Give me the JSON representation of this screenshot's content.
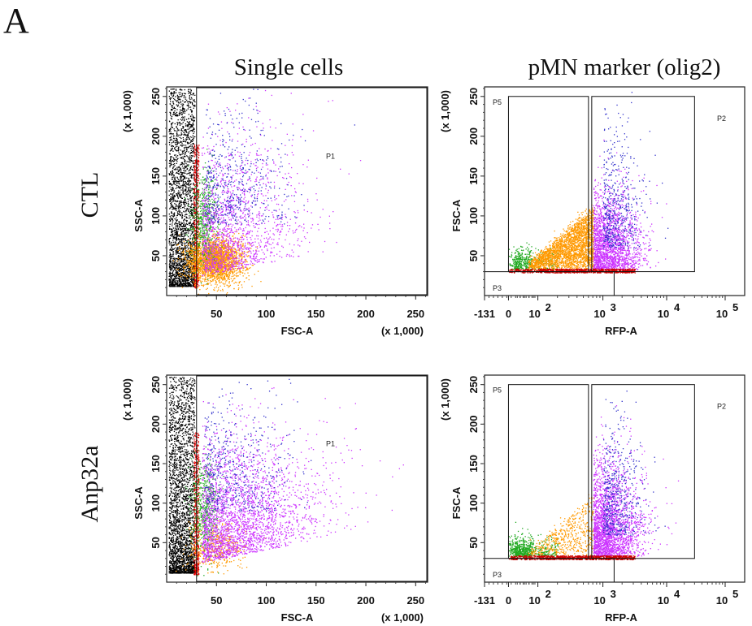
{
  "figure": {
    "panel_letter": "A",
    "column_titles": [
      "Single cells",
      "pMN marker (olig2)"
    ],
    "row_labels": [
      "CTL",
      "Anp32a"
    ]
  },
  "chart_data": [
    {
      "type": "scatter",
      "sample": "CTL",
      "plot": "Single cells",
      "xlabel": "FSC-A",
      "ylabel": "SSC-A",
      "x_unit_note": "(x 1,000)",
      "y_unit_note": "(x 1,000)",
      "xlim": [
        0,
        262
      ],
      "ylim": [
        0,
        262
      ],
      "x_ticks": [
        "50",
        "100",
        "150",
        "200",
        "250"
      ],
      "y_ticks": [
        "50",
        "100",
        "150",
        "200",
        "250"
      ],
      "gates": [
        {
          "name": "P1",
          "x_min": 30,
          "x_max": 262,
          "y_min": 0,
          "y_max": 262
        }
      ],
      "population_colors": {
        "excluded": "#000000",
        "doublet_edge": "#e00000",
        "olig2_negative": "#ff9900",
        "olig2_low": "#22aa22",
        "olig2_positive": "#cc33ff",
        "high_ssc": "#3333cc"
      }
    },
    {
      "type": "scatter",
      "sample": "CTL",
      "plot": "pMN marker (olig2)",
      "xlabel": "RFP-A",
      "ylabel": "FSC-A",
      "y_unit_note": "(x 1,000)",
      "x_scale": "biexponential",
      "ylim": [
        0,
        262
      ],
      "x_ticks": [
        "-131",
        "0",
        "10^2",
        "10^3",
        "10^4",
        "10^5"
      ],
      "y_ticks": [
        "50",
        "100",
        "150",
        "200",
        "250"
      ],
      "gates": [
        {
          "name": "P5",
          "x_min": 0,
          "x_max": 600,
          "y_min": 30,
          "y_max": 250
        },
        {
          "name": "P2",
          "x_min": 600,
          "x_max": 30000,
          "y_min": 30,
          "y_max": 250
        },
        {
          "name": "P3",
          "x_min": -131,
          "x_max": 1500,
          "y_min": 0,
          "y_max": 30
        }
      ],
      "population_colors": {
        "P5": "#22aa22",
        "mid": "#ff9900",
        "P2": "#cc33ff",
        "P2_high": "#3333cc",
        "P3": "#cc0000"
      }
    },
    {
      "type": "scatter",
      "sample": "Anp32a",
      "plot": "Single cells",
      "xlabel": "FSC-A",
      "ylabel": "SSC-A",
      "x_unit_note": "(x 1,000)",
      "y_unit_note": "(x 1,000)",
      "xlim": [
        0,
        262
      ],
      "ylim": [
        0,
        262
      ],
      "x_ticks": [
        "50",
        "100",
        "150",
        "200",
        "250"
      ],
      "y_ticks": [
        "50",
        "100",
        "150",
        "200",
        "250"
      ],
      "gates": [
        {
          "name": "P1",
          "x_min": 30,
          "x_max": 262,
          "y_min": 0,
          "y_max": 262
        }
      ],
      "population_colors": {
        "excluded": "#000000",
        "doublet_edge": "#e00000",
        "olig2_negative": "#ff9900",
        "olig2_low": "#22aa22",
        "olig2_positive": "#cc33ff",
        "high_ssc": "#3333cc"
      }
    },
    {
      "type": "scatter",
      "sample": "Anp32a",
      "plot": "pMN marker (olig2)",
      "xlabel": "RFP-A",
      "ylabel": "FSC-A",
      "y_unit_note": "(x 1,000)",
      "x_scale": "biexponential",
      "ylim": [
        0,
        262
      ],
      "x_ticks": [
        "-131",
        "0",
        "10^2",
        "10^3",
        "10^4",
        "10^5"
      ],
      "y_ticks": [
        "50",
        "100",
        "150",
        "200",
        "250"
      ],
      "gates": [
        {
          "name": "P5",
          "x_min": 0,
          "x_max": 600,
          "y_min": 30,
          "y_max": 250
        },
        {
          "name": "P2",
          "x_min": 600,
          "x_max": 30000,
          "y_min": 30,
          "y_max": 250
        },
        {
          "name": "P3",
          "x_min": -131,
          "x_max": 1500,
          "y_min": 0,
          "y_max": 30
        }
      ],
      "population_colors": {
        "P5": "#22aa22",
        "mid": "#ff9900",
        "P2": "#cc33ff",
        "P2_high": "#3333cc",
        "P3": "#cc0000"
      }
    }
  ]
}
